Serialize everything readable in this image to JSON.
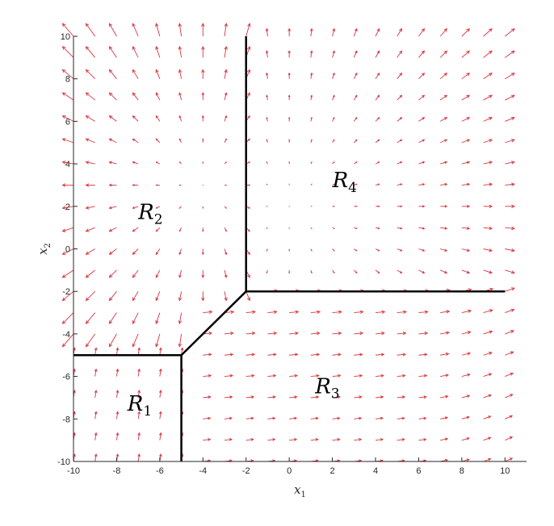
{
  "chart_data": {
    "type": "quiver",
    "title": "",
    "xlabel_var": "x",
    "xlabel_sub": "1",
    "ylabel_var": "x",
    "ylabel_sub": "2",
    "xlim": [
      -10,
      11
    ],
    "ylim": [
      -10,
      10
    ],
    "xticks": [
      -10,
      -8,
      -6,
      -4,
      -2,
      0,
      2,
      4,
      6,
      8,
      10
    ],
    "yticks": [
      -10,
      -8,
      -6,
      -4,
      -2,
      0,
      2,
      4,
      6,
      8,
      10
    ],
    "grid_step": 1,
    "arrow_color": "#d9333f",
    "boundary_color": "#000000",
    "field": {
      "R1": {
        "vector": [
          0.15,
          1.0
        ],
        "note": "points up"
      },
      "R2": {
        "center": [
          -4,
          3
        ],
        "strength": 0.25,
        "note": "flows outward from a source near (-4, 3)"
      },
      "R3": {
        "vector": [
          1.0,
          0.12
        ],
        "note": "points right, tilted upward near the right edge"
      },
      "R4": {
        "center": [
          0,
          2
        ],
        "strength": 0.13,
        "note": "flows outward from a source near (0, 2)"
      }
    },
    "boundaries": [
      {
        "name": "R1-R2",
        "points": [
          [
            -10,
            -5
          ],
          [
            -5,
            -5
          ]
        ]
      },
      {
        "name": "R1-R3",
        "points": [
          [
            -5,
            -10
          ],
          [
            -5,
            -5
          ]
        ]
      },
      {
        "name": "R2-R3",
        "points": [
          [
            -5,
            -5
          ],
          [
            -2,
            -2
          ]
        ]
      },
      {
        "name": "R2-R4",
        "points": [
          [
            -2,
            -2
          ],
          [
            -2,
            10
          ]
        ]
      },
      {
        "name": "R3-R4",
        "points": [
          [
            -2,
            -2
          ],
          [
            10,
            -2
          ]
        ]
      }
    ],
    "regions": [
      {
        "id": "R1",
        "letter": "R",
        "sub": "1",
        "label_pos": [
          -7.5,
          -7.6
        ]
      },
      {
        "id": "R2",
        "letter": "R",
        "sub": "2",
        "label_pos": [
          -7.0,
          1.4
        ]
      },
      {
        "id": "R3",
        "letter": "R",
        "sub": "3",
        "label_pos": [
          1.2,
          -6.8
        ]
      },
      {
        "id": "R4",
        "letter": "R",
        "sub": "4",
        "label_pos": [
          2.0,
          2.9
        ]
      }
    ]
  }
}
